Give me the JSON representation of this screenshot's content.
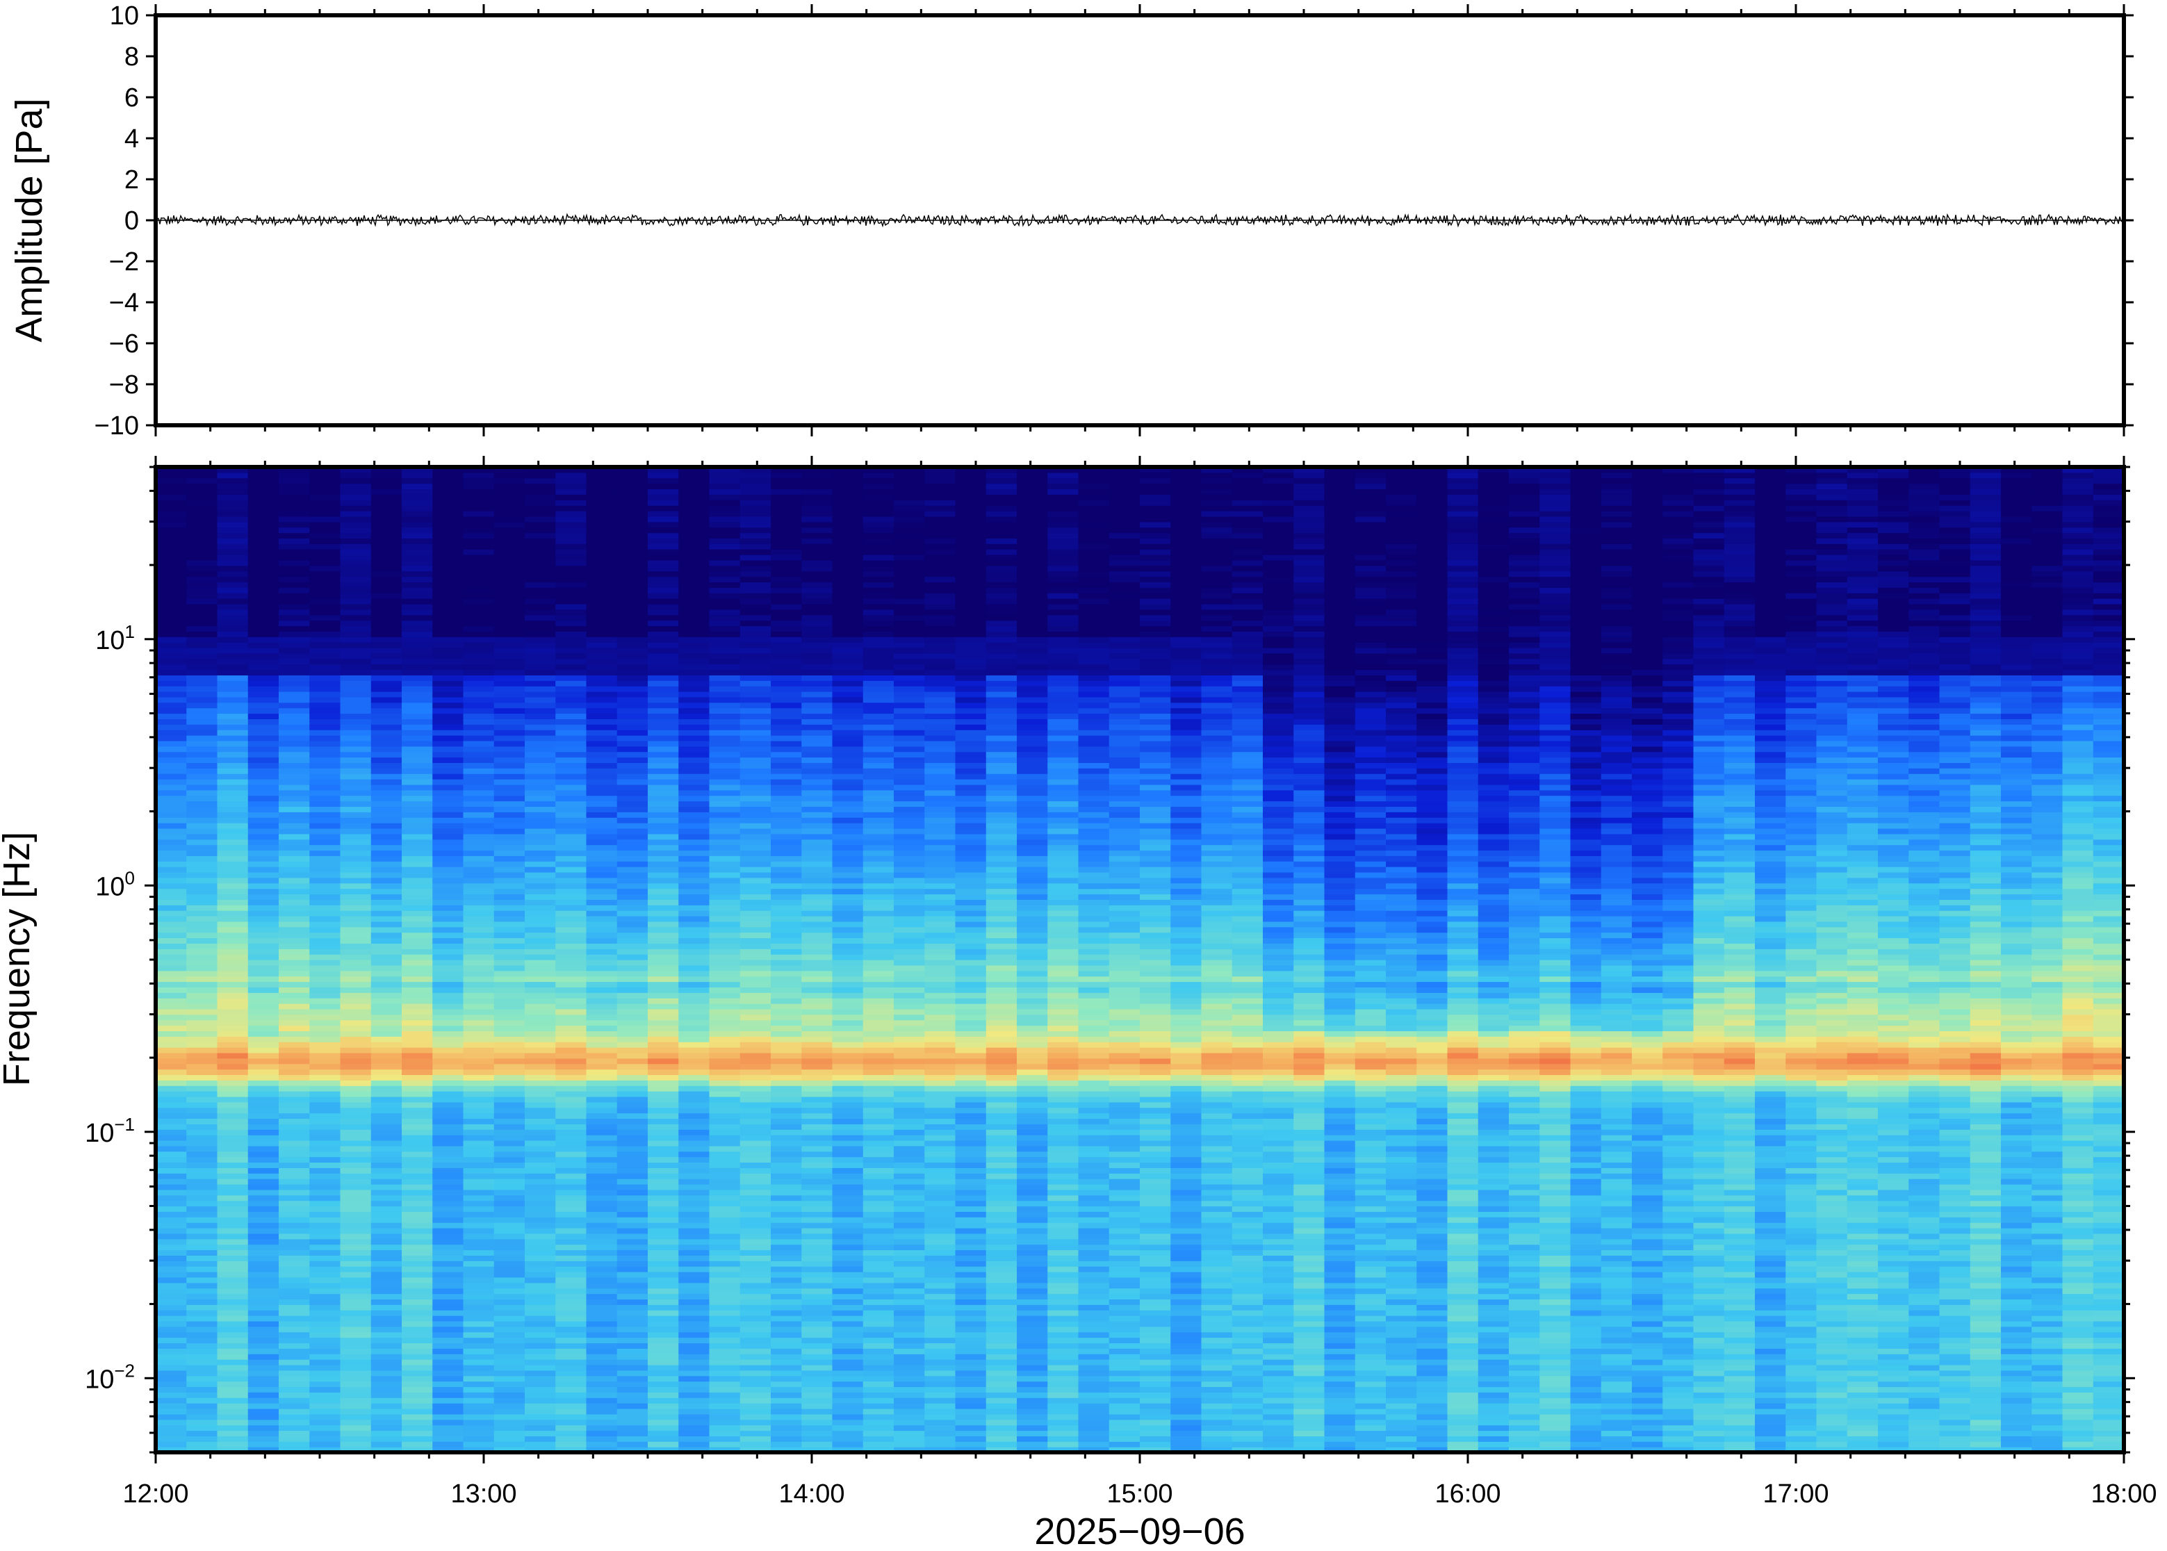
{
  "chart_data": [
    {
      "type": "line",
      "panel": "waveform",
      "ylabel": "Amplitude [Pa]",
      "ylim": [
        -10,
        10
      ],
      "y_ticks": [
        "10",
        "8",
        "6",
        "4",
        "2",
        "0",
        "−2",
        "−4",
        "−6",
        "−8",
        "−10"
      ],
      "y_tick_values": [
        10,
        8,
        6,
        4,
        2,
        0,
        -2,
        -4,
        -6,
        -8,
        -10
      ],
      "series": [
        {
          "trace": "near-zero noise trace, approx ±0.3 Pa",
          "amplitude_estimate": 0.3,
          "color": "#000000"
        }
      ]
    },
    {
      "type": "heatmap",
      "panel": "spectrogram",
      "ylabel": "Frequency [Hz]",
      "y_scale": "log",
      "ylim": [
        0.005,
        50
      ],
      "y_ticks": [
        {
          "base": "10",
          "exp": "1",
          "value": 10
        },
        {
          "base": "10",
          "exp": "0",
          "value": 1
        },
        {
          "base": "10",
          "exp": "−1",
          "value": 0.1
        },
        {
          "base": "10",
          "exp": "−2",
          "value": 0.01
        }
      ],
      "colormap": [
        "#0b006e",
        "#0a1fd6",
        "#1e7bff",
        "#3fc8f0",
        "#8ee8c2",
        "#f0e880",
        "#f5b060",
        "#f06a40"
      ],
      "peak_band_hz": 0.19,
      "color_scale": "relative power (no colorbar shown)"
    }
  ],
  "x_axis": {
    "xlim": [
      "2025-09-06 12:00",
      "2025-09-06 18:00"
    ],
    "tick_labels": [
      "12:00",
      "13:00",
      "14:00",
      "15:00",
      "16:00",
      "17:00",
      "18:00"
    ],
    "xlabel": "2025−09−06"
  }
}
